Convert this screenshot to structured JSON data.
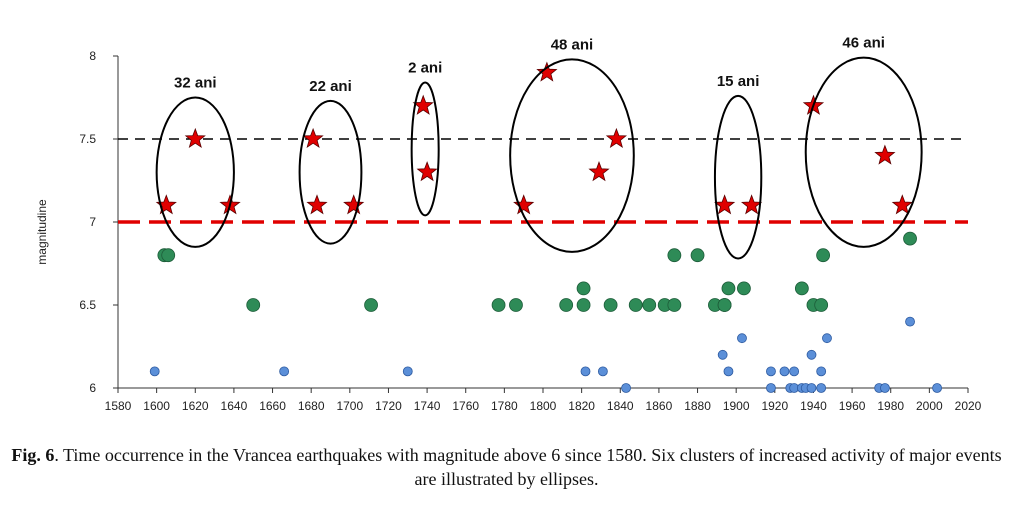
{
  "chart_data": {
    "type": "scatter",
    "title": "",
    "xlabel": "",
    "ylabel": "magnitudine",
    "xlim": [
      1580,
      2020
    ],
    "ylim": [
      6,
      8
    ],
    "x_ticks": [
      1580,
      1600,
      1620,
      1640,
      1660,
      1680,
      1700,
      1720,
      1740,
      1760,
      1780,
      1800,
      1820,
      1840,
      1860,
      1880,
      1900,
      1920,
      1940,
      1960,
      1980,
      2000,
      2020
    ],
    "y_ticks": [
      "6",
      "6.5",
      "7",
      "7.5",
      "8"
    ],
    "reference_lines": [
      {
        "y": 7.5,
        "color": "#000000",
        "style": "dashed"
      },
      {
        "y": 7.0,
        "color": "#e00000",
        "style": "dashed"
      }
    ],
    "series": [
      {
        "marker": "star",
        "color": "#e00000",
        "points": [
          [
            1605,
            7.1
          ],
          [
            1620,
            7.5
          ],
          [
            1638,
            7.1
          ],
          [
            1681,
            7.5
          ],
          [
            1683,
            7.1
          ],
          [
            1702,
            7.1
          ],
          [
            1738,
            7.7
          ],
          [
            1740,
            7.3
          ],
          [
            1790,
            7.1
          ],
          [
            1802,
            7.9
          ],
          [
            1829,
            7.3
          ],
          [
            1838,
            7.5
          ],
          [
            1894,
            7.1
          ],
          [
            1908,
            7.1
          ],
          [
            1940,
            7.7
          ],
          [
            1977,
            7.4
          ],
          [
            1986,
            7.1
          ]
        ]
      },
      {
        "marker": "circle",
        "color": "#2e8b57",
        "points": [
          [
            1604,
            6.8
          ],
          [
            1606,
            6.8
          ],
          [
            1650,
            6.5
          ],
          [
            1711,
            6.5
          ],
          [
            1777,
            6.5
          ],
          [
            1786,
            6.5
          ],
          [
            1812,
            6.5
          ],
          [
            1821,
            6.6
          ],
          [
            1821,
            6.5
          ],
          [
            1835,
            6.5
          ],
          [
            1848,
            6.5
          ],
          [
            1855,
            6.5
          ],
          [
            1863,
            6.5
          ],
          [
            1868,
            6.5
          ],
          [
            1868,
            6.8
          ],
          [
            1880,
            6.8
          ],
          [
            1889,
            6.5
          ],
          [
            1894,
            6.5
          ],
          [
            1894,
            6.5
          ],
          [
            1896,
            6.6
          ],
          [
            1904,
            6.6
          ],
          [
            1934,
            6.6
          ],
          [
            1940,
            6.5
          ],
          [
            1944,
            6.5
          ],
          [
            1945,
            6.8
          ],
          [
            1990,
            6.9
          ]
        ]
      },
      {
        "marker": "circle",
        "color": "#5b8fd8",
        "points": [
          [
            1599,
            6.1
          ],
          [
            1666,
            6.1
          ],
          [
            1730,
            6.1
          ],
          [
            1822,
            6.1
          ],
          [
            1831,
            6.1
          ],
          [
            1843,
            6.0
          ],
          [
            1893,
            6.2
          ],
          [
            1896,
            6.1
          ],
          [
            1903,
            6.3
          ],
          [
            1918,
            6.1
          ],
          [
            1918,
            6.0
          ],
          [
            1925,
            6.1
          ],
          [
            1928,
            6.0
          ],
          [
            1930,
            6.1
          ],
          [
            1930,
            6.0
          ],
          [
            1934,
            6.0
          ],
          [
            1936,
            6.0
          ],
          [
            1939,
            6.2
          ],
          [
            1939,
            6.0
          ],
          [
            1944,
            6.1
          ],
          [
            1944,
            6.0
          ],
          [
            1947,
            6.3
          ],
          [
            1974,
            6.0
          ],
          [
            1977,
            6.0
          ],
          [
            1990,
            6.4
          ],
          [
            2004,
            6.0
          ]
        ]
      }
    ],
    "clusters": [
      {
        "label": "32 ani",
        "x_center": 1620,
        "y_center": 7.3,
        "x_radius": 20,
        "y_radius": 0.45
      },
      {
        "label": "22 ani",
        "x_center": 1690,
        "y_center": 7.3,
        "x_radius": 16,
        "y_radius": 0.43
      },
      {
        "label": "2 ani",
        "x_center": 1739,
        "y_center": 7.44,
        "x_radius": 7,
        "y_radius": 0.4
      },
      {
        "label": "48 ani",
        "x_center": 1815,
        "y_center": 7.4,
        "x_radius": 32,
        "y_radius": 0.58
      },
      {
        "label": "15 ani",
        "x_center": 1901,
        "y_center": 7.27,
        "x_radius": 12,
        "y_radius": 0.49
      },
      {
        "label": "46 ani",
        "x_center": 1966,
        "y_center": 7.42,
        "x_radius": 30,
        "y_radius": 0.57
      }
    ]
  },
  "caption": {
    "fig_label": "Fig. 6",
    "text": ". Time occurrence in the Vrancea earthquakes with magnitude above 6 since 1580. Six clusters of increased activity of major events are illustrated by ellipses."
  }
}
